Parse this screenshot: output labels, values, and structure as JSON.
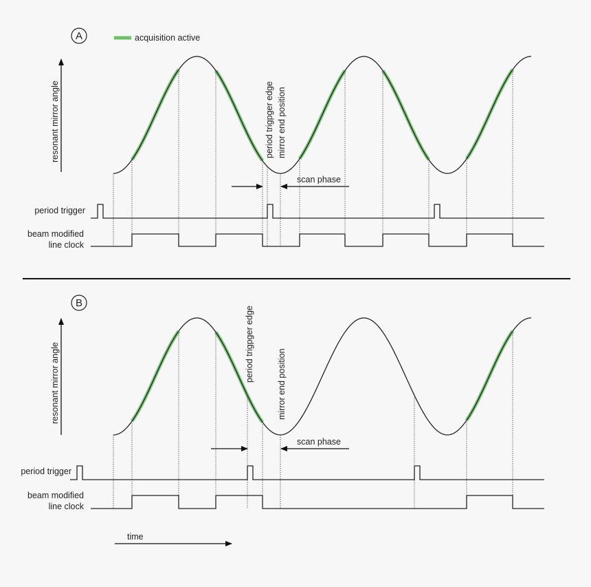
{
  "legend": {
    "label": "acquisition active",
    "color": "#6fbf6b"
  },
  "panels": [
    {
      "id": "A",
      "y_axis_label": "resonant mirror angle",
      "period_trigger_label": "period trigger",
      "line_clock_label_1": "beam modified",
      "line_clock_label_2": "line clock",
      "trigger_edge_label": "period trigpger edge",
      "mirror_end_label": "mirror end position",
      "scan_phase_label": "scan phase",
      "acquisition_active_segments": [
        1,
        2,
        3,
        4,
        5
      ]
    },
    {
      "id": "B",
      "y_axis_label": "resonant mirror angle",
      "period_trigger_label": "period trigger",
      "line_clock_label_1": "beam modified",
      "line_clock_label_2": "line clock",
      "trigger_edge_label": "period trigpger edge",
      "mirror_end_label": "mirror end position",
      "scan_phase_label": "scan phase",
      "acquisition_active_segments": [
        1,
        2,
        5
      ]
    }
  ],
  "time_label": "time",
  "colors": {
    "background": "#f7f7f7",
    "line": "#222222",
    "acquisition": "#6fbf6b"
  }
}
